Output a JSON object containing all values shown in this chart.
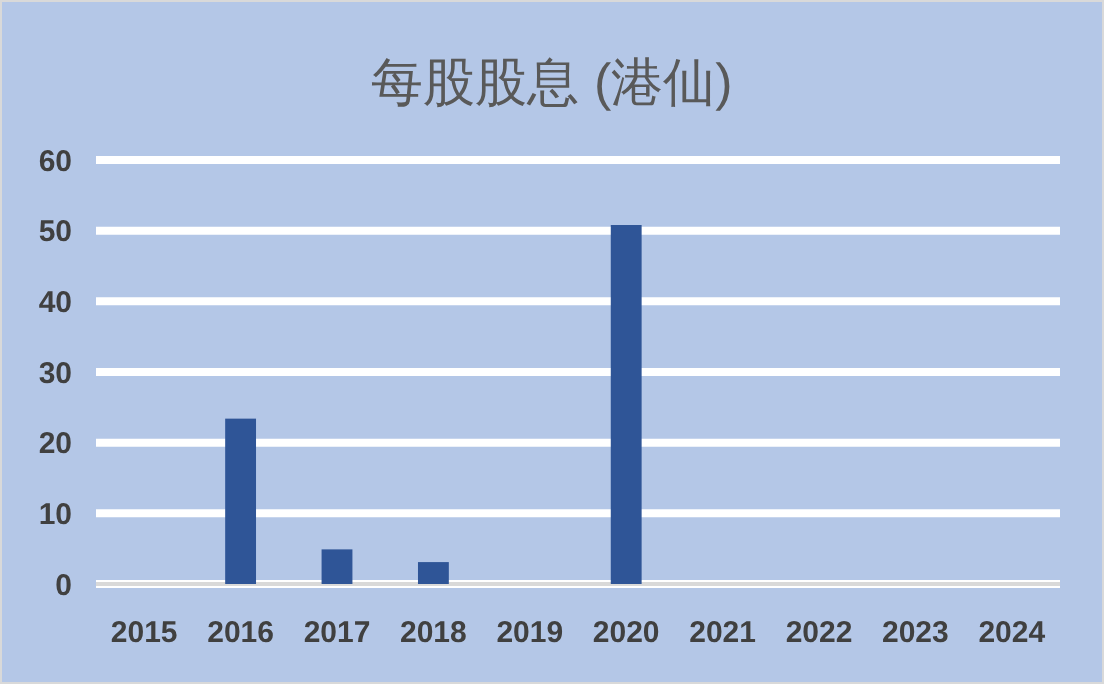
{
  "chart_data": {
    "type": "bar",
    "title": "每股股息 (港仙)",
    "categories": [
      "2015",
      "2016",
      "2017",
      "2018",
      "2019",
      "2020",
      "2021",
      "2022",
      "2023",
      "2024"
    ],
    "values": [
      null,
      23.4,
      4.9,
      3.1,
      null,
      50.8,
      null,
      null,
      null,
      null
    ],
    "color": "#2f5597",
    "ylim": [
      0,
      60
    ],
    "yticks": [
      0,
      10,
      20,
      30,
      40,
      50,
      60
    ],
    "grid": "y"
  }
}
